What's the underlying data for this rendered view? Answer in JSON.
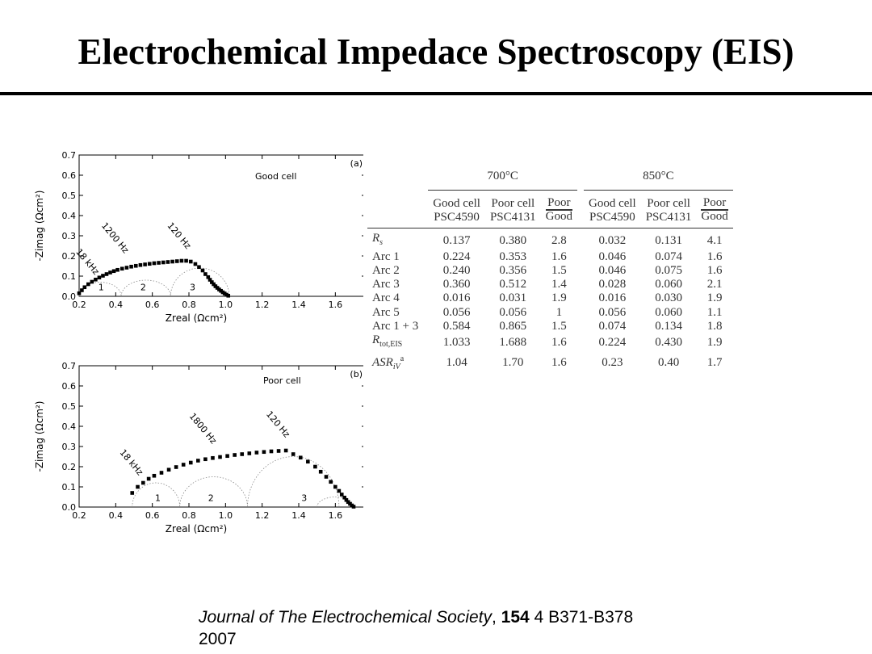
{
  "title": "Electrochemical Impedace Spectroscopy (EIS)",
  "citation": {
    "journal": "Journal of The Electrochemical Society",
    "sep": ", ",
    "volume": "154",
    "rest": " 4 B371-B378",
    "year": "2007"
  },
  "chart_data": [
    {
      "type": "scatter",
      "panel_label": "(a)",
      "legend": "Good cell",
      "xlabel": "Zreal (Ωcm²)",
      "ylabel": "-Zimag (Ωcm²)",
      "xlim": [
        0.2,
        1.7
      ],
      "ylim": [
        0.0,
        0.7
      ],
      "xticks": [
        "0.2",
        "0.4",
        "0.6",
        "0.8",
        "1.0",
        "1.2",
        "1.4",
        "1.6"
      ],
      "yticks": [
        "0.0",
        "0.1",
        "0.2",
        "0.3",
        "0.4",
        "0.5",
        "0.6",
        "0.7"
      ],
      "arc_labels": [
        "1",
        "2",
        "3"
      ],
      "freq_labels": [
        "18 kHz",
        "1200 Hz",
        "120 Hz"
      ],
      "series": [
        {
          "x": [
            0.2,
            0.215,
            0.23,
            0.25,
            0.27,
            0.29,
            0.31,
            0.33,
            0.35,
            0.37,
            0.39,
            0.41,
            0.435,
            0.46,
            0.485,
            0.51,
            0.535,
            0.56,
            0.585,
            0.61,
            0.635,
            0.66,
            0.685,
            0.71,
            0.735,
            0.76,
            0.785,
            0.81,
            0.835,
            0.855,
            0.875,
            0.89,
            0.905,
            0.915,
            0.925,
            0.935,
            0.945,
            0.955,
            0.965,
            0.975,
            0.985,
            0.995,
            1.005,
            1.015
          ],
          "y": [
            0.015,
            0.03,
            0.045,
            0.06,
            0.072,
            0.083,
            0.093,
            0.102,
            0.11,
            0.118,
            0.125,
            0.131,
            0.137,
            0.142,
            0.147,
            0.151,
            0.155,
            0.158,
            0.161,
            0.164,
            0.166,
            0.168,
            0.17,
            0.172,
            0.174,
            0.176,
            0.176,
            0.172,
            0.16,
            0.145,
            0.128,
            0.11,
            0.095,
            0.082,
            0.07,
            0.06,
            0.05,
            0.042,
            0.034,
            0.027,
            0.02,
            0.014,
            0.008,
            0.003
          ]
        }
      ]
    },
    {
      "type": "scatter",
      "panel_label": "(b)",
      "legend": "Poor cell",
      "xlabel": "Zreal (Ωcm²)",
      "ylabel": "-Zimag (Ωcm²)",
      "xlim": [
        0.2,
        1.7
      ],
      "ylim": [
        0.0,
        0.7
      ],
      "xticks": [
        "0.2",
        "0.4",
        "0.6",
        "0.8",
        "1.0",
        "1.2",
        "1.4",
        "1.6"
      ],
      "yticks": [
        "0.0",
        "0.1",
        "0.2",
        "0.3",
        "0.4",
        "0.5",
        "0.6",
        "0.7"
      ],
      "arc_labels": [
        "1",
        "2",
        "3"
      ],
      "freq_labels": [
        "18 kHz",
        "1800 Hz",
        "120 Hz"
      ],
      "series": [
        {
          "x": [
            0.49,
            0.52,
            0.55,
            0.58,
            0.61,
            0.65,
            0.69,
            0.73,
            0.77,
            0.81,
            0.85,
            0.89,
            0.93,
            0.97,
            1.01,
            1.05,
            1.09,
            1.13,
            1.17,
            1.21,
            1.25,
            1.29,
            1.33,
            1.37,
            1.41,
            1.45,
            1.49,
            1.52,
            1.55,
            1.575,
            1.6,
            1.62,
            1.635,
            1.65,
            1.66,
            1.67,
            1.68,
            1.69,
            1.7
          ],
          "y": [
            0.07,
            0.1,
            0.12,
            0.14,
            0.155,
            0.17,
            0.185,
            0.198,
            0.21,
            0.22,
            0.23,
            0.237,
            0.243,
            0.248,
            0.253,
            0.258,
            0.262,
            0.266,
            0.27,
            0.273,
            0.276,
            0.278,
            0.28,
            0.262,
            0.245,
            0.225,
            0.2,
            0.175,
            0.15,
            0.125,
            0.1,
            0.08,
            0.062,
            0.047,
            0.035,
            0.025,
            0.016,
            0.008,
            0.002
          ]
        }
      ]
    },
    {
      "type": "table",
      "temps": [
        "700°C",
        "850°C"
      ],
      "columns": [
        [
          "Good cell",
          "PSC4590"
        ],
        [
          "Poor cell",
          "PSC4131"
        ],
        [
          "Poor",
          "Good"
        ],
        [
          "Good cell",
          "PSC4590"
        ],
        [
          "Poor cell",
          "PSC4131"
        ],
        [
          "Poor",
          "Good"
        ]
      ],
      "rows": [
        {
          "label": "R",
          "sub": "s",
          "sup": "",
          "values": [
            "0.137",
            "0.380",
            "2.8",
            "0.032",
            "0.131",
            "4.1"
          ]
        },
        {
          "label": "Arc 1",
          "sub": "",
          "sup": "",
          "values": [
            "0.224",
            "0.353",
            "1.6",
            "0.046",
            "0.074",
            "1.6"
          ]
        },
        {
          "label": "Arc 2",
          "sub": "",
          "sup": "",
          "values": [
            "0.240",
            "0.356",
            "1.5",
            "0.046",
            "0.075",
            "1.6"
          ]
        },
        {
          "label": "Arc 3",
          "sub": "",
          "sup": "",
          "values": [
            "0.360",
            "0.512",
            "1.4",
            "0.028",
            "0.060",
            "2.1"
          ]
        },
        {
          "label": "Arc 4",
          "sub": "",
          "sup": "",
          "values": [
            "0.016",
            "0.031",
            "1.9",
            "0.016",
            "0.030",
            "1.9"
          ]
        },
        {
          "label": "Arc 5",
          "sub": "",
          "sup": "",
          "values": [
            "0.056",
            "0.056",
            "1",
            "0.056",
            "0.060",
            "1.1"
          ]
        },
        {
          "label": "Arc 1 + 3",
          "sub": "",
          "sup": "",
          "values": [
            "0.584",
            "0.865",
            "1.5",
            "0.074",
            "0.134",
            "1.8"
          ]
        },
        {
          "label": "R",
          "sub": "tot,EIS",
          "sup": "",
          "values": [
            "1.033",
            "1.688",
            "1.6",
            "0.224",
            "0.430",
            "1.9"
          ]
        },
        {
          "label": "ASR",
          "sub": "iV",
          "sup": "a",
          "values": [
            "1.04",
            "1.70",
            "1.6",
            "0.23",
            "0.40",
            "1.7"
          ]
        }
      ]
    }
  ]
}
